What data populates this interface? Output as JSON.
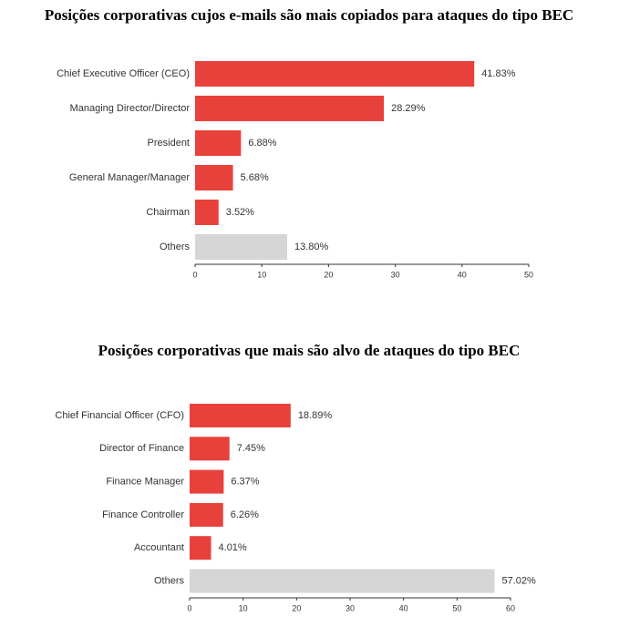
{
  "chart_data": [
    {
      "type": "bar",
      "orientation": "horizontal",
      "title": "Posições corporativas cujos e-mails são mais copiados para ataques do tipo BEC",
      "categories": [
        "Chief Executive Officer (CEO)",
        "Managing Director/Director",
        "President",
        "General Manager/Manager",
        "Chairman",
        "Others"
      ],
      "values": [
        41.83,
        28.29,
        6.88,
        5.68,
        3.52,
        13.8
      ],
      "value_labels": [
        "41.83%",
        "28.29%",
        "6.88%",
        "5.68%",
        "3.52%",
        "13.80%"
      ],
      "colors": [
        "#e8413b",
        "#e8413b",
        "#e8413b",
        "#e8413b",
        "#e8413b",
        "#d5d5d5"
      ],
      "xlim": [
        0,
        50
      ],
      "xticks": [
        0,
        10,
        20,
        30,
        40,
        50
      ]
    },
    {
      "type": "bar",
      "orientation": "horizontal",
      "title": "Posições corporativas que mais são alvo de ataques do tipo BEC",
      "categories": [
        "Chief Financial Officer (CFO)",
        "Director of Finance",
        "Finance Manager",
        "Finance Controller",
        "Accountant",
        "Others"
      ],
      "values": [
        18.89,
        7.45,
        6.37,
        6.26,
        4.01,
        57.02
      ],
      "value_labels": [
        "18.89%",
        "7.45%",
        "6.37%",
        "6.26%",
        "4.01%",
        "57.02%"
      ],
      "colors": [
        "#e8413b",
        "#e8413b",
        "#e8413b",
        "#e8413b",
        "#e8413b",
        "#d5d5d5"
      ],
      "xlim": [
        0,
        60
      ],
      "xticks": [
        0,
        10,
        20,
        30,
        40,
        50,
        60
      ]
    }
  ]
}
